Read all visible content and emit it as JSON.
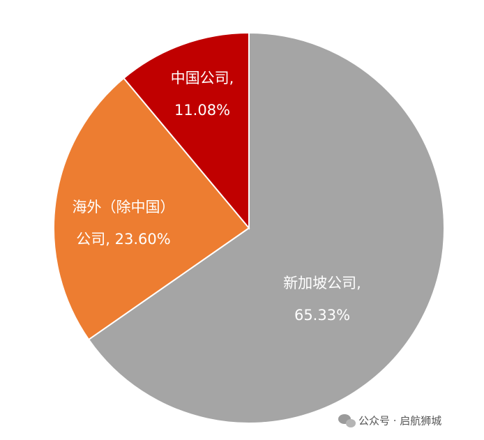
{
  "chart_data": {
    "type": "pie",
    "values": [
      65.33,
      23.6,
      11.08
    ],
    "colors": [
      "#a5a5a5",
      "#ed7d31",
      "#c00000"
    ],
    "label_lines": [
      [
        "新加坡公司,",
        "65.33%"
      ],
      [
        "海外（除中国）",
        "公司, 23.60%"
      ],
      [
        "中国公司,",
        "11.08%"
      ]
    ],
    "watermark": "公众号 · 启航狮城"
  }
}
